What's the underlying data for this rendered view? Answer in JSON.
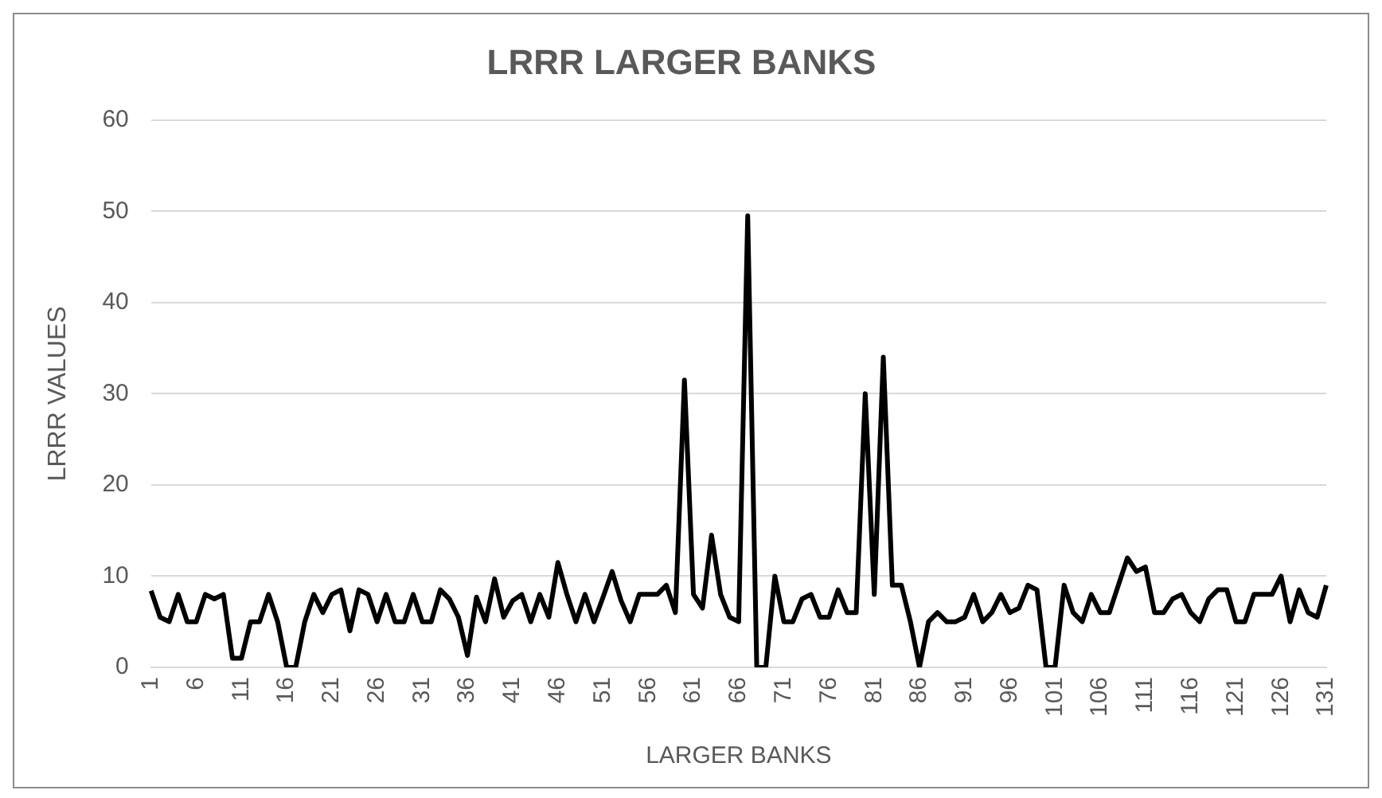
{
  "chart_data": {
    "type": "line",
    "title": "LRRR LARGER BANKS",
    "xlabel": "LARGER BANKS",
    "ylabel": "LRRR VALUES",
    "categories": [
      "1",
      null,
      null,
      null,
      null,
      "6",
      null,
      null,
      null,
      null,
      "11",
      null,
      null,
      null,
      null,
      "16",
      null,
      null,
      null,
      null,
      "21",
      null,
      null,
      null,
      null,
      "26",
      null,
      null,
      null,
      null,
      "31",
      null,
      null,
      null,
      null,
      "36",
      null,
      null,
      null,
      null,
      "41",
      null,
      null,
      null,
      null,
      "46",
      null,
      null,
      null,
      null,
      "51",
      null,
      null,
      null,
      null,
      "56",
      null,
      null,
      null,
      null,
      "61",
      null,
      null,
      null,
      null,
      "66",
      null,
      null,
      null,
      null,
      "71",
      null,
      null,
      null,
      null,
      "76",
      null,
      null,
      null,
      null,
      "81",
      null,
      null,
      null,
      null,
      "86",
      null,
      null,
      null,
      null,
      "91",
      null,
      null,
      null,
      null,
      "96",
      null,
      null,
      null,
      null,
      "101",
      null,
      null,
      null,
      null,
      "106",
      null,
      null,
      null,
      null,
      "111",
      null,
      null,
      null,
      null,
      "116",
      null,
      null,
      null,
      null,
      "121",
      null,
      null,
      null,
      null,
      "126",
      null,
      null,
      null,
      null,
      "131"
    ],
    "series": [
      {
        "color": "#000000",
        "values": [
          8.4,
          5.5,
          5,
          8,
          5,
          5,
          8,
          7.5,
          8,
          1,
          1,
          5,
          5,
          8,
          5,
          0,
          0,
          5,
          8,
          6,
          8,
          8.5,
          4,
          8.5,
          8,
          5,
          8,
          5,
          5,
          8,
          5,
          5,
          8.5,
          7.5,
          5.5,
          1.3,
          7.7,
          5,
          9.7,
          5.5,
          7.3,
          8,
          5,
          8,
          5.5,
          11.5,
          8,
          5,
          8,
          5,
          7.7,
          10.5,
          7.3,
          5,
          8,
          8,
          8,
          9,
          6,
          31.5,
          8,
          6.5,
          14.5,
          8,
          5.5,
          5,
          49.5,
          0,
          0,
          10,
          5,
          5,
          7.5,
          8,
          5.5,
          5.5,
          8.5,
          6,
          6,
          30,
          8,
          34,
          9,
          9,
          5,
          0,
          5,
          6,
          5,
          5,
          5.5,
          8,
          5,
          6,
          8,
          6,
          6.5,
          9,
          8.5,
          0,
          0,
          9,
          6,
          5,
          8,
          6,
          6,
          9,
          12,
          10.5,
          11,
          6,
          6,
          7.5,
          8,
          6,
          5,
          7.5,
          8.5,
          8.5,
          5,
          5,
          8,
          8,
          8,
          10,
          5,
          8.5,
          6,
          5.5,
          9
        ]
      }
    ],
    "ylim": [
      0,
      60
    ],
    "yticks": [
      0,
      10,
      20,
      30,
      40,
      50,
      60
    ],
    "grid": "y",
    "legend": false,
    "marker": "none",
    "line_style": "solid"
  }
}
